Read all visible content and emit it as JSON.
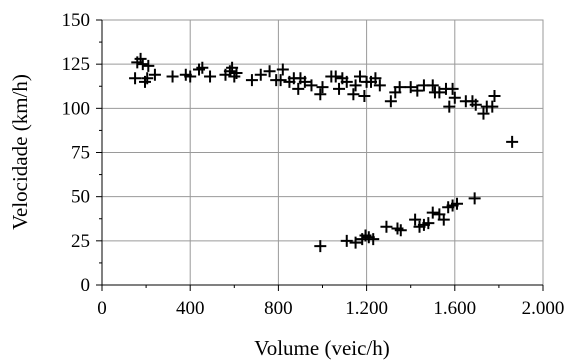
{
  "chart_data": {
    "type": "scatter",
    "title": "",
    "xlabel": "Volume (veic/h)",
    "ylabel": "Velocidade (km/h)",
    "xlim": [
      0,
      2000
    ],
    "ylim": [
      0,
      150
    ],
    "x_ticks": [
      0,
      400,
      800,
      1200,
      1600,
      2000
    ],
    "x_tick_labels": [
      "0",
      "400",
      "800",
      "1.200",
      "1.600",
      "2.000"
    ],
    "y_ticks": [
      0,
      25,
      50,
      75,
      100,
      125,
      150
    ],
    "y_tick_labels": [
      "0",
      "25",
      "50",
      "75",
      "100",
      "125",
      "150"
    ],
    "grid": true,
    "legend": "none",
    "marker": "+",
    "marker_color": "#000000",
    "series": [
      {
        "points": [
          [
            150,
            117
          ],
          [
            160,
            126
          ],
          [
            175,
            128
          ],
          [
            185,
            125
          ],
          [
            195,
            115
          ],
          [
            205,
            117
          ],
          [
            210,
            124
          ],
          [
            240,
            119
          ],
          [
            320,
            118
          ],
          [
            380,
            119
          ],
          [
            400,
            118
          ],
          [
            440,
            122
          ],
          [
            455,
            123
          ],
          [
            490,
            118
          ],
          [
            560,
            119
          ],
          [
            580,
            121
          ],
          [
            590,
            123
          ],
          [
            600,
            118
          ],
          [
            610,
            120
          ],
          [
            680,
            116
          ],
          [
            720,
            119
          ],
          [
            760,
            121
          ],
          [
            790,
            116
          ],
          [
            810,
            116
          ],
          [
            820,
            122
          ],
          [
            850,
            115
          ],
          [
            870,
            117
          ],
          [
            890,
            111
          ],
          [
            900,
            117
          ],
          [
            920,
            115
          ],
          [
            950,
            113
          ],
          [
            990,
            108
          ],
          [
            1000,
            112
          ],
          [
            1040,
            118
          ],
          [
            1060,
            118
          ],
          [
            1075,
            111
          ],
          [
            1090,
            117
          ],
          [
            1110,
            115
          ],
          [
            1140,
            108
          ],
          [
            1150,
            113
          ],
          [
            1170,
            118
          ],
          [
            1190,
            107
          ],
          [
            1200,
            115
          ],
          [
            1220,
            115
          ],
          [
            1240,
            117
          ],
          [
            1260,
            113
          ],
          [
            1310,
            104
          ],
          [
            1330,
            109
          ],
          [
            1350,
            112
          ],
          [
            1400,
            112
          ],
          [
            1430,
            110
          ],
          [
            1460,
            113
          ],
          [
            1500,
            113
          ],
          [
            1510,
            109
          ],
          [
            1530,
            109
          ],
          [
            1560,
            111
          ],
          [
            1575,
            101
          ],
          [
            1590,
            111
          ],
          [
            1600,
            106
          ],
          [
            1650,
            104
          ],
          [
            1680,
            104
          ],
          [
            1695,
            102
          ],
          [
            1730,
            97
          ],
          [
            1745,
            101
          ],
          [
            1770,
            101
          ],
          [
            1780,
            107
          ],
          [
            1860,
            81
          ]
        ]
      },
      {
        "points": [
          [
            990,
            22
          ],
          [
            1110,
            25
          ],
          [
            1150,
            24
          ],
          [
            1180,
            26
          ],
          [
            1195,
            28
          ],
          [
            1210,
            27
          ],
          [
            1230,
            26
          ],
          [
            1290,
            33
          ],
          [
            1340,
            32
          ],
          [
            1355,
            31
          ],
          [
            1420,
            37
          ],
          [
            1440,
            33
          ],
          [
            1460,
            34
          ],
          [
            1480,
            35
          ],
          [
            1500,
            41
          ],
          [
            1530,
            40
          ],
          [
            1550,
            37
          ],
          [
            1570,
            44
          ],
          [
            1590,
            45
          ],
          [
            1610,
            46
          ],
          [
            1690,
            49
          ]
        ]
      }
    ]
  }
}
